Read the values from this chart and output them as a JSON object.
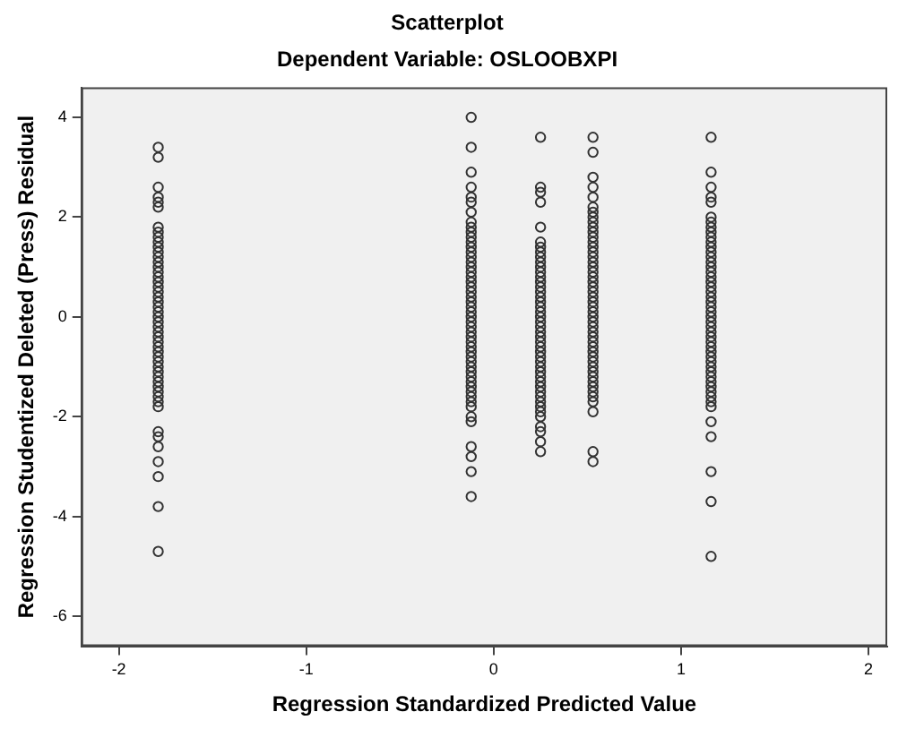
{
  "chart_data": {
    "type": "scatter",
    "title": "Scatterplot",
    "subtitle": "Dependent Variable: OSLOOBXPI",
    "xlabel": "Regression Standardized Predicted Value",
    "ylabel": "Regression Studentized Deleted (Press) Residual",
    "xlim": [
      -2.2,
      2.1
    ],
    "ylim": [
      -6.6,
      4.6
    ],
    "xticks": [
      -2,
      -1,
      0,
      1,
      2
    ],
    "yticks": [
      -6,
      -4,
      -2,
      0,
      2,
      4
    ],
    "grid": false,
    "legend": false,
    "marker": "circle",
    "series": [
      {
        "color": "#333333",
        "x": [
          -1.79,
          -1.79,
          -1.79,
          -1.79,
          -1.79,
          -1.79,
          -1.79,
          -1.79,
          -1.79,
          -1.79,
          -1.79,
          -1.79,
          -1.79,
          -1.79,
          -1.79,
          -1.79,
          -1.79,
          -1.79,
          -1.79,
          -1.79,
          -1.79,
          -1.79,
          -1.79,
          -1.79,
          -1.79,
          -1.79,
          -1.79,
          -1.79,
          -1.79,
          -1.79,
          -1.79,
          -1.79,
          -1.79,
          -1.79,
          -1.79,
          -1.79,
          -1.79,
          -1.79,
          -1.79,
          -1.79,
          -1.79,
          -1.79,
          -1.79,
          -1.79,
          -1.79,
          -1.79,
          -1.79,
          -1.79,
          -1.79,
          -1.79
        ],
        "values": [
          3.4,
          3.2,
          2.6,
          2.4,
          2.3,
          2.2,
          1.8,
          1.7,
          1.6,
          1.5,
          1.4,
          1.3,
          1.2,
          1.1,
          1.0,
          0.9,
          0.8,
          0.7,
          0.6,
          0.5,
          0.4,
          0.3,
          0.2,
          0.1,
          0,
          -0.1,
          -0.2,
          -0.3,
          -0.4,
          -0.5,
          -0.6,
          -0.7,
          -0.8,
          -0.9,
          -1.0,
          -1.1,
          -1.2,
          -1.3,
          -1.4,
          -1.5,
          -1.6,
          -1.7,
          -1.8,
          -2.3,
          -2.4,
          -2.6,
          -2.9,
          -3.2,
          -3.8,
          -4.7
        ]
      },
      {
        "color": "#333333",
        "x": [
          -0.12,
          -0.12,
          -0.12,
          -0.12,
          -0.12,
          -0.12,
          -0.12,
          -0.12,
          -0.12,
          -0.12,
          -0.12,
          -0.12,
          -0.12,
          -0.12,
          -0.12,
          -0.12,
          -0.12,
          -0.12,
          -0.12,
          -0.12,
          -0.12,
          -0.12,
          -0.12,
          -0.12,
          -0.12,
          -0.12,
          -0.12,
          -0.12,
          -0.12,
          -0.12,
          -0.12,
          -0.12,
          -0.12,
          -0.12,
          -0.12,
          -0.12,
          -0.12,
          -0.12,
          -0.12,
          -0.12,
          -0.12,
          -0.12,
          -0.12,
          -0.12,
          -0.12,
          -0.12,
          -0.12,
          -0.12,
          -0.12,
          -0.12,
          -0.12
        ],
        "values": [
          4.0,
          3.4,
          2.9,
          2.6,
          2.4,
          2.3,
          2.1,
          1.9,
          1.8,
          1.7,
          1.6,
          1.5,
          1.4,
          1.3,
          1.2,
          1.1,
          1.0,
          0.9,
          0.8,
          0.7,
          0.6,
          0.5,
          0.4,
          0.3,
          0.2,
          0.1,
          0,
          -0.1,
          -0.2,
          -0.3,
          -0.4,
          -0.5,
          -0.6,
          -0.7,
          -0.8,
          -0.9,
          -1.0,
          -1.1,
          -1.2,
          -1.3,
          -1.4,
          -1.5,
          -1.6,
          -1.7,
          -1.8,
          -2.1,
          -2.6,
          -2.8,
          -3.1,
          -3.6,
          -2.0
        ]
      },
      {
        "color": "#333333",
        "x": [
          0.25,
          0.25,
          0.25,
          0.25,
          0.25,
          0.25,
          0.25,
          0.25,
          0.25,
          0.25,
          0.25,
          0.25,
          0.25,
          0.25,
          0.25,
          0.25,
          0.25,
          0.25,
          0.25,
          0.25,
          0.25,
          0.25,
          0.25,
          0.25,
          0.25,
          0.25,
          0.25,
          0.25,
          0.25,
          0.25,
          0.25,
          0.25,
          0.25,
          0.25,
          0.25,
          0.25,
          0.25,
          0.25,
          0.25,
          0.25,
          0.25,
          0.25,
          0.25,
          0.25,
          0.25
        ],
        "values": [
          3.6,
          2.6,
          2.5,
          2.3,
          1.8,
          1.5,
          1.4,
          1.3,
          1.2,
          1.1,
          1.0,
          0.9,
          0.8,
          0.7,
          0.6,
          0.5,
          0.4,
          0.3,
          0.2,
          0.1,
          0,
          -0.1,
          -0.2,
          -0.3,
          -0.4,
          -0.5,
          -0.6,
          -0.7,
          -0.8,
          -0.9,
          -1.0,
          -1.1,
          -1.2,
          -1.3,
          -1.4,
          -1.5,
          -1.6,
          -1.7,
          -1.8,
          -1.9,
          -2.0,
          -2.2,
          -2.3,
          -2.5,
          -2.7
        ]
      },
      {
        "color": "#333333",
        "x": [
          0.53,
          0.53,
          0.53,
          0.53,
          0.53,
          0.53,
          0.53,
          0.53,
          0.53,
          0.53,
          0.53,
          0.53,
          0.53,
          0.53,
          0.53,
          0.53,
          0.53,
          0.53,
          0.53,
          0.53,
          0.53,
          0.53,
          0.53,
          0.53,
          0.53,
          0.53,
          0.53,
          0.53,
          0.53,
          0.53,
          0.53,
          0.53,
          0.53,
          0.53,
          0.53,
          0.53,
          0.53,
          0.53,
          0.53,
          0.53,
          0.53,
          0.53,
          0.53,
          0.53,
          0.53,
          0.53,
          0.53,
          0.53
        ],
        "values": [
          3.6,
          3.3,
          2.8,
          2.6,
          2.4,
          2.2,
          2.1,
          2.0,
          1.9,
          1.8,
          1.7,
          1.6,
          1.5,
          1.4,
          1.3,
          1.2,
          1.1,
          1.0,
          0.9,
          0.8,
          0.7,
          0.6,
          0.5,
          0.4,
          0.3,
          0.2,
          0.1,
          0,
          -0.1,
          -0.2,
          -0.3,
          -0.4,
          -0.5,
          -0.6,
          -0.7,
          -0.8,
          -0.9,
          -1.0,
          -1.1,
          -1.2,
          -1.3,
          -1.4,
          -1.5,
          -1.6,
          -1.7,
          -1.9,
          -2.7,
          -2.9
        ]
      },
      {
        "color": "#333333",
        "x": [
          1.16,
          1.16,
          1.16,
          1.16,
          1.16,
          1.16,
          1.16,
          1.16,
          1.16,
          1.16,
          1.16,
          1.16,
          1.16,
          1.16,
          1.16,
          1.16,
          1.16,
          1.16,
          1.16,
          1.16,
          1.16,
          1.16,
          1.16,
          1.16,
          1.16,
          1.16,
          1.16,
          1.16,
          1.16,
          1.16,
          1.16,
          1.16,
          1.16,
          1.16,
          1.16,
          1.16,
          1.16,
          1.16,
          1.16,
          1.16,
          1.16,
          1.16,
          1.16,
          1.16,
          1.16,
          1.16,
          1.16,
          1.16,
          1.16
        ],
        "values": [
          3.6,
          2.9,
          2.6,
          2.4,
          2.3,
          2.0,
          1.9,
          1.8,
          1.7,
          1.6,
          1.5,
          1.4,
          1.3,
          1.2,
          1.1,
          1.0,
          0.9,
          0.8,
          0.7,
          0.6,
          0.5,
          0.4,
          0.3,
          0.2,
          0.1,
          0,
          -0.1,
          -0.2,
          -0.3,
          -0.4,
          -0.5,
          -0.6,
          -0.7,
          -0.8,
          -0.9,
          -1.0,
          -1.1,
          -1.2,
          -1.3,
          -1.4,
          -1.5,
          -1.6,
          -1.7,
          -1.8,
          -2.1,
          -2.4,
          -3.1,
          -3.7,
          -4.8
        ]
      }
    ]
  }
}
